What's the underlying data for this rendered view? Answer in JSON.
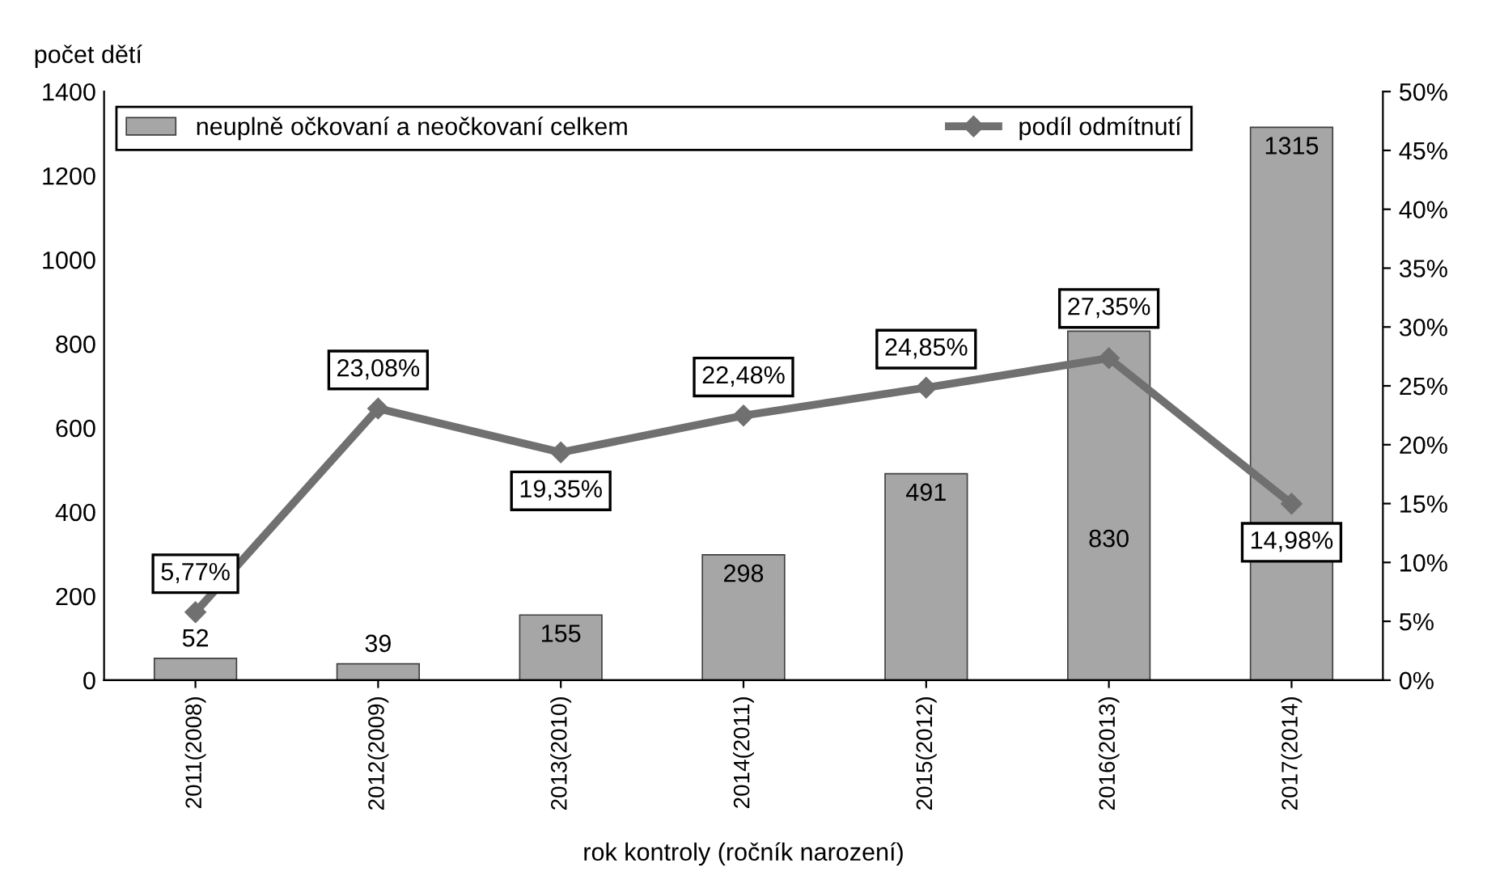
{
  "chart_data": {
    "type": "bar",
    "categories": [
      "2011(2008)",
      "2012(2009)",
      "2013(2010)",
      "2014(2011)",
      "2015(2012)",
      "2016(2013)",
      "2017(2014)"
    ],
    "series": [
      {
        "name": "neuplně očkovaní a neočkovaní celkem",
        "color": "#a6a6a6",
        "values": [
          52,
          39,
          155,
          298,
          491,
          830,
          1315
        ],
        "value_labels": [
          "52",
          "39",
          "155",
          "298",
          "491",
          "830",
          "1315"
        ]
      },
      {
        "name": "podíl odmítnutí",
        "type": "line",
        "axis": "y2",
        "color": "#707070",
        "values": [
          5.77,
          23.08,
          19.35,
          22.48,
          24.85,
          27.35,
          14.98
        ],
        "value_labels": [
          "5,77%",
          "23,08%",
          "19,35%",
          "22,48%",
          "24,85%",
          "27,35%",
          "14,98%"
        ]
      }
    ],
    "ylabel": "počet dětí",
    "xlabel": "rok kontroly (ročník narození)",
    "ylim": [
      0,
      1400
    ],
    "yticks": [
      0,
      200,
      400,
      600,
      800,
      1000,
      1200,
      1400
    ],
    "y2lim": [
      0,
      50
    ],
    "y2ticks": [
      {
        "value": 0,
        "label": "0%"
      },
      {
        "value": 5,
        "label": "5%"
      },
      {
        "value": 10,
        "label": "10%"
      },
      {
        "value": 15,
        "label": "15%"
      },
      {
        "value": 20,
        "label": "20%"
      },
      {
        "value": 25,
        "label": "25%"
      },
      {
        "value": 30,
        "label": "30%"
      },
      {
        "value": 35,
        "label": "35%"
      },
      {
        "value": 40,
        "label": "40%"
      },
      {
        "value": 45,
        "label": "45%"
      },
      {
        "value": 50,
        "label": "50%"
      }
    ],
    "legend": "top",
    "marker": "diamond",
    "line_style": "solid",
    "grid": false
  }
}
